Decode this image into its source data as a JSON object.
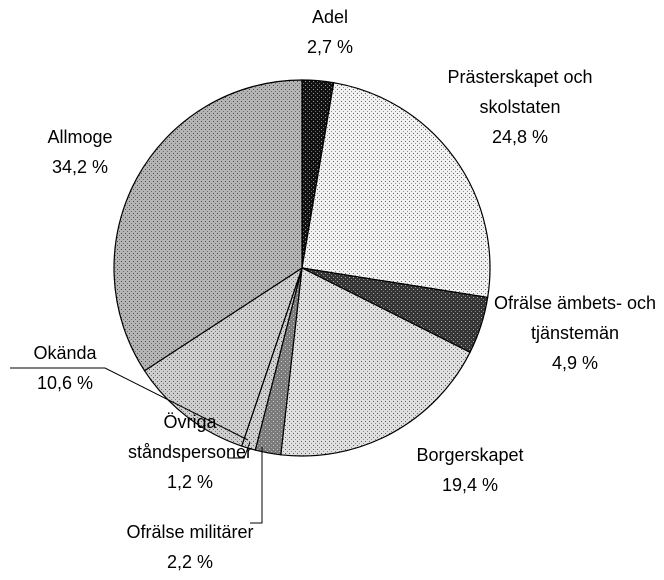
{
  "chart_data": {
    "type": "pie",
    "categories": [
      "Adel",
      "Prästerskapet och skolstaten",
      "Ofrälse ämbets- och tjänstemän",
      "Borgerskapet",
      "Ofrälse militärer",
      "Övriga ståndspersoner",
      "Okända",
      "Allmoge"
    ],
    "values": [
      2.7,
      24.8,
      4.9,
      19.4,
      2.2,
      1.2,
      10.6,
      34.2
    ],
    "value_labels": [
      "2,7 %",
      "24,8 %",
      "4,9 %",
      "19,4 %",
      "2,2 %",
      "1,2 %",
      "10,6 %",
      "34,2 %"
    ],
    "colors": [
      "#111111",
      "#f2f2f2",
      "#333333",
      "#e0e0e0",
      "#7a7a7a",
      "#d0d0d0",
      "#cfcfcf",
      "#b5b5b5"
    ]
  }
}
